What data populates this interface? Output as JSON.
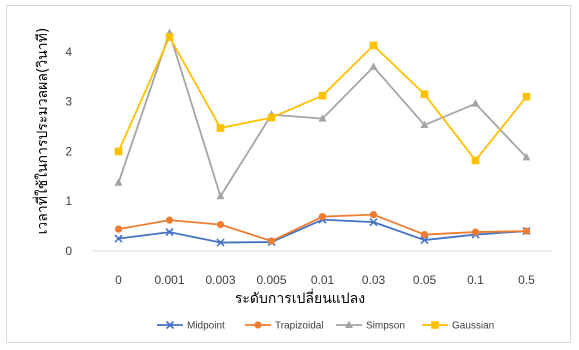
{
  "chart_data": {
    "type": "line",
    "title": "",
    "xlabel": "ระดับการเปลี่ยนแปลง",
    "ylabel": "เวลาที่ใช้ในการประมวลผล(วินาที)",
    "categories": [
      "0",
      "0.001",
      "0.003",
      "0.005",
      "0.01",
      "0.03",
      "0.05",
      "0.1",
      "0.5"
    ],
    "ylim": [
      0,
      4.5
    ],
    "yticks": [
      "0",
      "1",
      "2",
      "3",
      "4"
    ],
    "grid": false,
    "legend_position": "bottom",
    "series": [
      {
        "name": "Midpoint",
        "color": "#4472C4",
        "marker": "x",
        "values": [
          0.25,
          0.38,
          0.17,
          0.18,
          0.63,
          0.58,
          0.22,
          0.33,
          0.4
        ]
      },
      {
        "name": "Trapizoidal",
        "color": "#ED7D31",
        "marker": "circle",
        "values": [
          0.44,
          0.62,
          0.53,
          0.2,
          0.69,
          0.73,
          0.33,
          0.38,
          0.4
        ]
      },
      {
        "name": "Simpson",
        "color": "#A5A5A5",
        "marker": "triangle",
        "values": [
          1.37,
          4.38,
          1.1,
          2.74,
          2.66,
          3.7,
          2.53,
          2.96,
          1.88
        ]
      },
      {
        "name": "Gaussian",
        "color": "#FFC000",
        "marker": "square",
        "values": [
          2.0,
          4.3,
          2.47,
          2.68,
          3.12,
          4.13,
          3.15,
          1.82,
          3.1
        ]
      }
    ]
  }
}
